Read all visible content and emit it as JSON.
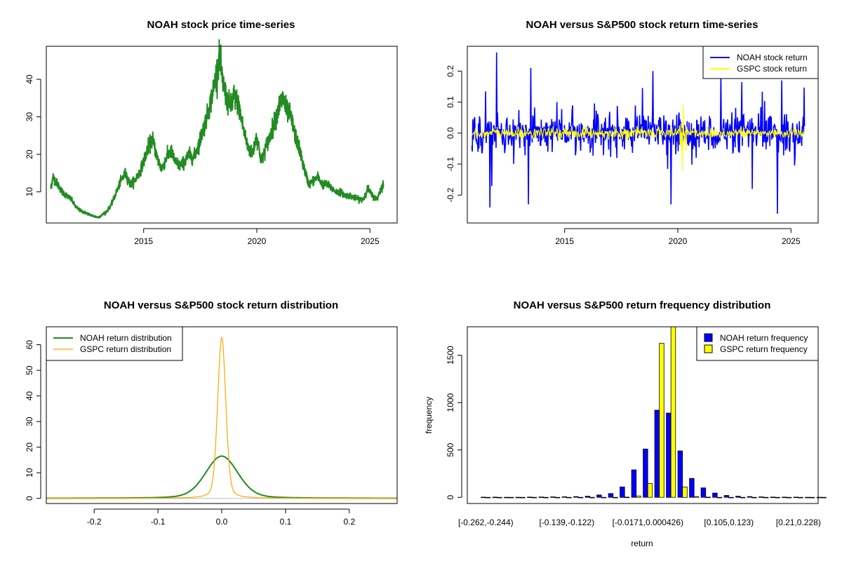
{
  "chart_data": [
    {
      "type": "line",
      "title": "NOAH stock price time-series",
      "xlabel": "",
      "ylabel": "",
      "xlim": [
        2010.7,
        2026.2
      ],
      "ylim": [
        1.7,
        48.8
      ],
      "x_ticks": [
        2015,
        2020,
        2025
      ],
      "y_ticks": [
        10,
        20,
        30,
        40
      ],
      "color": "#228b22",
      "series": [
        {
          "x": [
            2010.9,
            2011.0,
            2011.2,
            2011.4,
            2011.6,
            2011.8,
            2012.0,
            2012.2,
            2012.4,
            2012.6,
            2012.8,
            2013.0,
            2013.2,
            2013.4,
            2013.6,
            2013.8,
            2014.0,
            2014.2,
            2014.4,
            2014.6,
            2014.8,
            2015.0,
            2015.2,
            2015.4,
            2015.6,
            2015.8,
            2016.0,
            2016.2,
            2016.4,
            2016.6,
            2016.8,
            2017.0,
            2017.2,
            2017.4,
            2017.6,
            2017.8,
            2018.0,
            2018.2,
            2018.35,
            2018.5,
            2018.7,
            2018.9,
            2019.0,
            2019.2,
            2019.4,
            2019.6,
            2019.8,
            2020.0,
            2020.2,
            2020.4,
            2020.6,
            2020.8,
            2021.0,
            2021.15,
            2021.3,
            2021.5,
            2021.7,
            2021.9,
            2022.1,
            2022.3,
            2022.5,
            2022.7,
            2022.9,
            2023.1,
            2023.3,
            2023.5,
            2023.7,
            2023.9,
            2024.1,
            2024.3,
            2024.5,
            2024.7,
            2024.9,
            2025.1,
            2025.3,
            2025.5,
            2025.6
          ],
          "y": [
            11,
            14,
            12,
            10,
            9,
            8,
            6,
            5,
            4.5,
            4,
            3.5,
            3.2,
            4,
            5,
            7,
            10,
            13,
            15,
            12,
            13,
            15,
            18,
            22,
            24,
            19,
            16,
            19,
            21,
            18,
            17,
            18,
            20,
            19,
            22,
            26,
            30,
            35,
            41,
            46,
            39,
            34,
            33,
            36,
            33,
            27,
            22,
            20,
            25,
            18,
            22,
            25,
            29,
            33,
            35,
            32,
            30,
            25,
            21,
            16,
            12,
            13,
            14,
            12,
            12,
            11,
            10,
            10,
            9,
            9,
            8.5,
            8,
            8,
            11,
            9,
            8,
            11,
            12
          ]
        }
      ]
    },
    {
      "type": "line",
      "title": "NOAH versus S&P500 stock return time-series",
      "xlabel": "",
      "ylabel": "",
      "xlim": [
        2010.7,
        2026.2
      ],
      "ylim": [
        -0.29,
        0.28
      ],
      "x_ticks": [
        2015,
        2020,
        2025
      ],
      "y_ticks": [
        -0.2,
        -0.1,
        0.0,
        0.1,
        0.2
      ],
      "legend_position": "top-right",
      "series": [
        {
          "name": "NOAH stock return",
          "color": "#0000ff",
          "x_range": [
            2010.9,
            2025.6
          ],
          "typical_abs": 0.03,
          "spikes": [
            [
              2012.0,
              0.26
            ],
            [
              2011.7,
              -0.24
            ],
            [
              2013.5,
              0.21
            ],
            [
              2013.4,
              -0.23
            ],
            [
              2018.9,
              0.2
            ],
            [
              2019.7,
              -0.23
            ],
            [
              2021.9,
              0.19
            ],
            [
              2023.3,
              -0.18
            ],
            [
              2024.4,
              -0.26
            ],
            [
              2024.6,
              0.17
            ]
          ]
        },
        {
          "name": "GSPC stock return",
          "color": "#ffff00",
          "x_range": [
            2010.9,
            2025.6
          ],
          "typical_abs": 0.009,
          "spikes": [
            [
              2020.2,
              -0.12
            ],
            [
              2020.25,
              0.09
            ]
          ]
        }
      ]
    },
    {
      "type": "line",
      "title": "NOAH versus S&P500 stock return distribution",
      "xlabel": "",
      "ylabel": "",
      "xlim": [
        -0.275,
        0.275
      ],
      "ylim": [
        -2,
        67
      ],
      "x_ticks": [
        -0.2,
        -0.1,
        0.0,
        0.1,
        0.2
      ],
      "y_ticks": [
        0,
        10,
        20,
        30,
        40,
        50,
        60
      ],
      "legend_position": "top-left",
      "series": [
        {
          "name": "NOAH return distribution",
          "color": "#228b22",
          "peak_x": 0.0,
          "peak_y": 16.5,
          "sd": 0.025
        },
        {
          "name": "GSPC return distribution",
          "color": "#ffa500",
          "peak_x": 0.0,
          "peak_y": 63,
          "sd": 0.0063
        }
      ]
    },
    {
      "type": "bar",
      "title": "NOAH versus S&P500 return frequency distribution",
      "xlabel": "return",
      "ylabel": "frequency",
      "ylim": [
        0,
        1800
      ],
      "y_ticks": [
        0,
        500,
        1000,
        1500
      ],
      "x_tick_labels": [
        "[-0.262,-0.244)",
        "[-0.139,-0.122)",
        "[-0.0171,0.000426)",
        "[0.105,0.123)",
        "[0.21,0.228)"
      ],
      "x_tick_bin_index": [
        0,
        7,
        14,
        21,
        27
      ],
      "legend_position": "top-right",
      "series": [
        {
          "name": "NOAH return frequency",
          "color": "#0000ff",
          "values": [
            2,
            2,
            1,
            1,
            3,
            4,
            5,
            6,
            8,
            12,
            25,
            40,
            110,
            290,
            510,
            920,
            890,
            490,
            200,
            100,
            45,
            20,
            12,
            8,
            5,
            3,
            2,
            2,
            1,
            1
          ]
        },
        {
          "name": "GSPC return frequency",
          "color": "#ffff00",
          "values": [
            0,
            0,
            0,
            0,
            0,
            0,
            0,
            0,
            0,
            0,
            0,
            0,
            2,
            15,
            145,
            1625,
            1800,
            110,
            8,
            2,
            0,
            0,
            0,
            0,
            0,
            0,
            0,
            0,
            0,
            0
          ]
        }
      ]
    }
  ]
}
